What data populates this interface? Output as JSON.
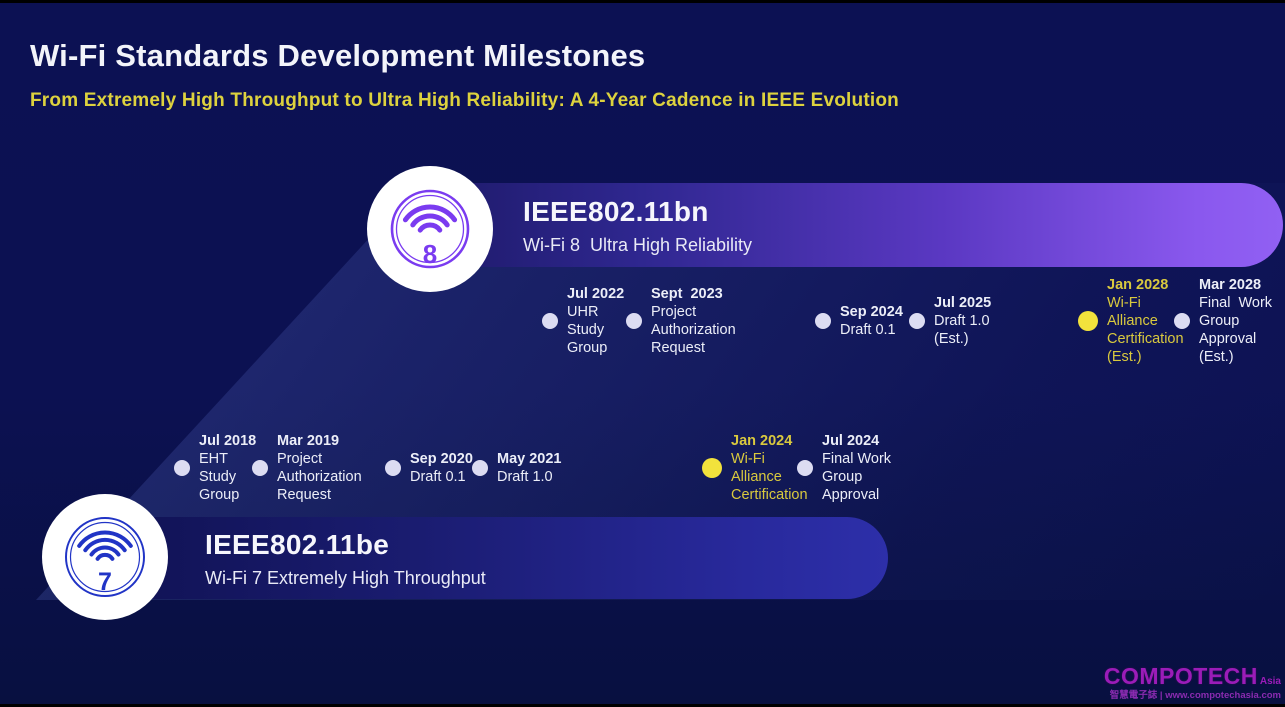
{
  "header": {
    "title": "Wi-Fi Standards Development Milestones",
    "subtitle": "From Extremely High Throughput to Ultra High Reliability: A 4-Year Cadence in IEEE Evolution"
  },
  "bands": {
    "wifi8": {
      "standard": "IEEE802.11bn",
      "descriptor": "Wi-Fi 8  Ultra High Reliability",
      "icon_number": "8",
      "accent_color": "#7a3bf0"
    },
    "wifi7": {
      "standard": "IEEE802.11be",
      "descriptor": "Wi-Fi 7 Extremely High Throughput",
      "icon_number": "7",
      "accent_color": "#2134c6"
    }
  },
  "timelines": {
    "wifi8": {
      "milestones": [
        {
          "date": "Jul 2022",
          "lines": [
            "UHR",
            "Study",
            "Group"
          ],
          "highlight": false
        },
        {
          "date": "Sept  2023",
          "lines": [
            "Project",
            "Authorization",
            "Request"
          ],
          "highlight": false
        },
        {
          "date": "Sep 2024",
          "lines": [
            "Draft 0.1"
          ],
          "highlight": false
        },
        {
          "date": "Jul 2025",
          "lines": [
            "Draft 1.0",
            "(Est.)"
          ],
          "highlight": false
        },
        {
          "date": "Jan 2028",
          "lines": [
            "Wi-Fi",
            "Alliance",
            "Certification",
            "(Est.)"
          ],
          "highlight": true
        },
        {
          "date": "Mar 2028",
          "lines": [
            "Final  Work",
            "Group",
            "Approval",
            "(Est.)"
          ],
          "highlight": false
        }
      ]
    },
    "wifi7": {
      "milestones": [
        {
          "date": "Jul 2018",
          "lines": [
            "EHT",
            "Study",
            "Group"
          ],
          "highlight": false
        },
        {
          "date": "Mar 2019",
          "lines": [
            "Project",
            "Authorization",
            "Request"
          ],
          "highlight": false
        },
        {
          "date": "Sep 2020",
          "lines": [
            "Draft 0.1"
          ],
          "highlight": false
        },
        {
          "date": "May 2021",
          "lines": [
            "Draft 1.0"
          ],
          "highlight": false
        },
        {
          "date": "Jan 2024",
          "lines": [
            "Wi-Fi",
            "Alliance",
            "Certification"
          ],
          "highlight": true
        },
        {
          "date": "Jul 2024",
          "lines": [
            "Final Work",
            "Group",
            "Approval"
          ],
          "highlight": false
        }
      ]
    }
  },
  "colors": {
    "background": "#0c1152",
    "band_purple": "#8f5ef2",
    "band_blue": "#2d2fa9",
    "highlight_yellow": "#f2e23c",
    "label_yellow": "#d9c93e",
    "dot_white": "#dcdcf2"
  },
  "watermark": {
    "brand": "COMPOTECH",
    "brand_suffix": "Asia",
    "tagline": "智慧電子誌 | www.compotechasia.com"
  }
}
